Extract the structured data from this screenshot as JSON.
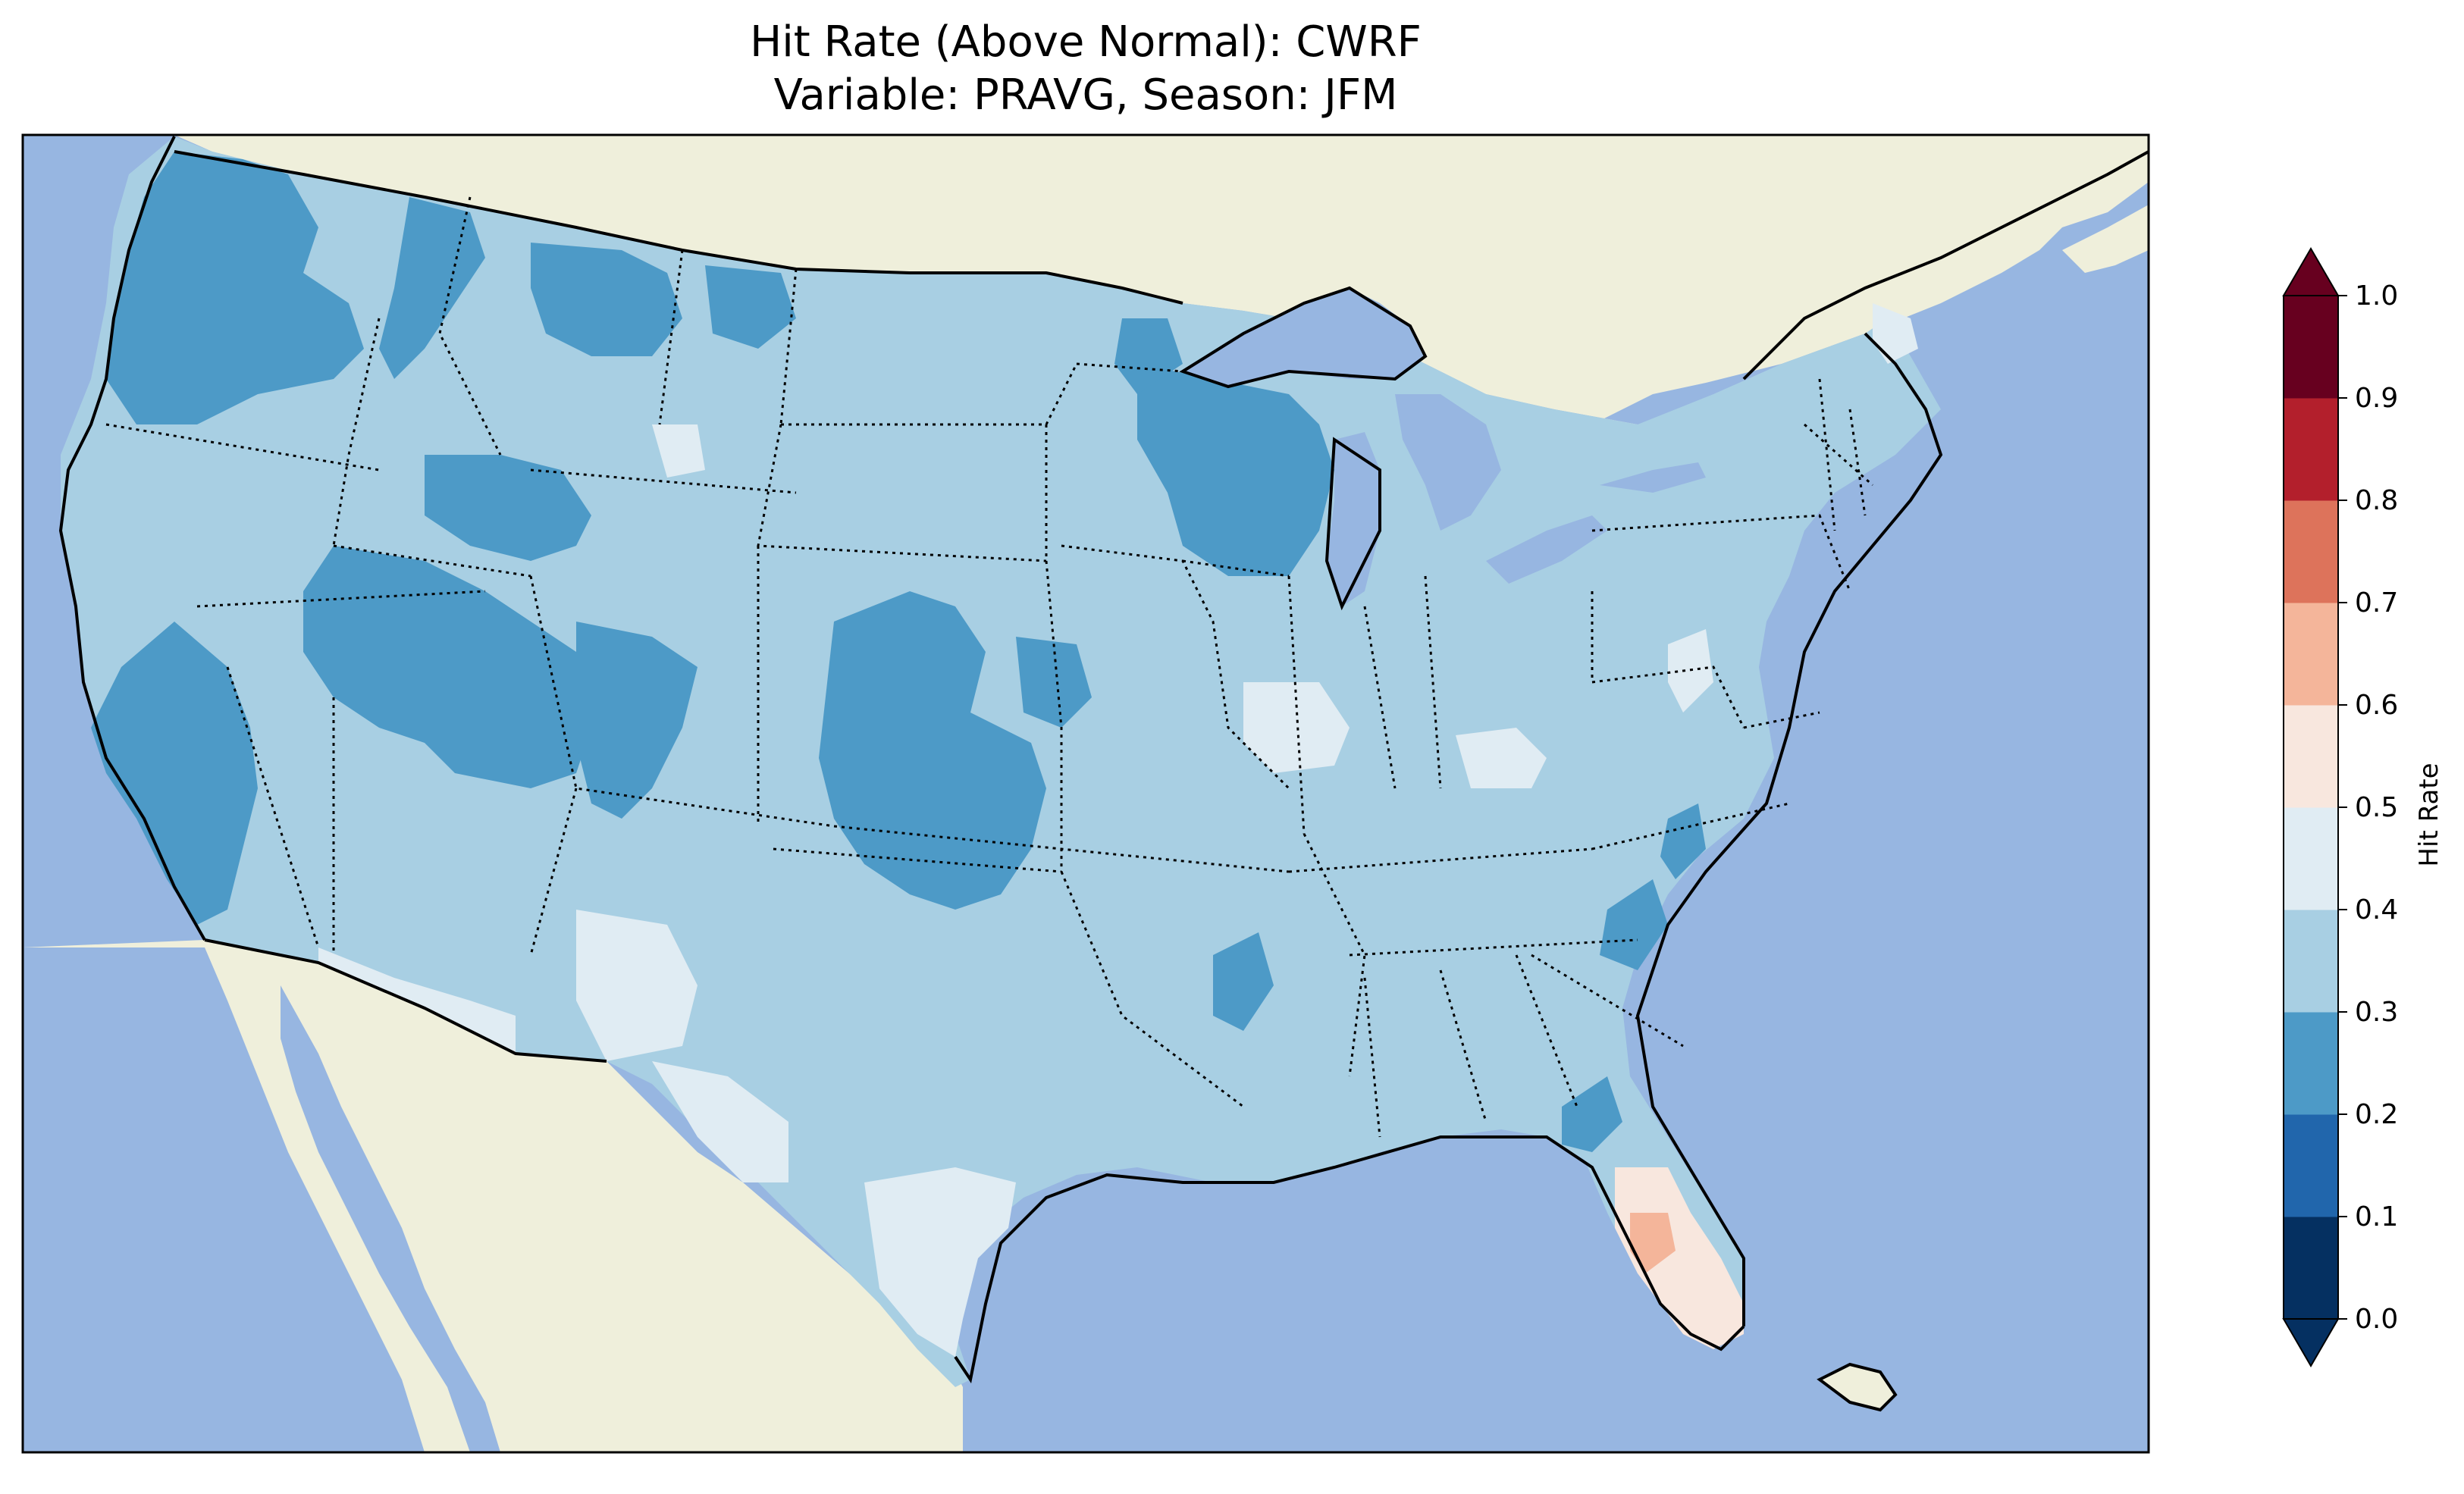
{
  "title": {
    "line1": "Hit Rate (Above Normal): CWRF",
    "line2": "Variable: PRAVG, Season: JFM"
  },
  "map": {
    "ocean_color": "#97b6e1",
    "land_color": "#efefdb",
    "lake_color": "#97b6e1",
    "coastline_color": "#000000",
    "state_border_style": "dotted",
    "region": "Contiguous United States"
  },
  "colorbar": {
    "label": "Hit Rate",
    "ticks": [
      "0.0",
      "0.1",
      "0.2",
      "0.3",
      "0.4",
      "0.5",
      "0.6",
      "0.7",
      "0.8",
      "0.9",
      "1.0"
    ],
    "extend": "both",
    "bins": [
      {
        "from": 0.0,
        "to": 0.1,
        "color": "#053061"
      },
      {
        "from": 0.1,
        "to": 0.2,
        "color": "#2166ac"
      },
      {
        "from": 0.2,
        "to": 0.3,
        "color": "#4d9ac7"
      },
      {
        "from": 0.3,
        "to": 0.4,
        "color": "#a8cfe3"
      },
      {
        "from": 0.4,
        "to": 0.5,
        "color": "#e0ecf3"
      },
      {
        "from": 0.5,
        "to": 0.6,
        "color": "#f8e7de"
      },
      {
        "from": 0.6,
        "to": 0.7,
        "color": "#f4b59a"
      },
      {
        "from": 0.7,
        "to": 0.8,
        "color": "#dd735b"
      },
      {
        "from": 0.8,
        "to": 0.9,
        "color": "#b31f2c"
      },
      {
        "from": 0.9,
        "to": 1.0,
        "color": "#67001f"
      }
    ],
    "under_color": "#053061",
    "over_color": "#67001f"
  },
  "chart_data": {
    "type": "heatmap",
    "title": "Hit Rate (Above Normal): CWRF / Variable: PRAVG, Season: JFM",
    "colorbar_label": "Hit Rate",
    "value_range": [
      0.0,
      1.0
    ],
    "dominant_range": [
      0.3,
      0.4
    ],
    "regions": [
      {
        "area": "Pacific Northwest",
        "range": [
          0.2,
          0.3
        ]
      },
      {
        "area": "Nevada / Utah / Wyoming",
        "range": [
          0.2,
          0.3
        ]
      },
      {
        "area": "Colorado / Kansas / Oklahoma",
        "range": [
          0.2,
          0.3
        ]
      },
      {
        "area": "Wisconsin / Upper Michigan",
        "range": [
          0.2,
          0.3
        ]
      },
      {
        "area": "Southwest border / Texas",
        "range": [
          0.4,
          0.5
        ]
      },
      {
        "area": "Central Illinois",
        "range": [
          0.4,
          0.5
        ]
      },
      {
        "area": "Florida peninsula",
        "range": [
          0.5,
          0.6
        ]
      },
      {
        "area": "Central Florida",
        "range": [
          0.6,
          0.7
        ]
      }
    ]
  }
}
